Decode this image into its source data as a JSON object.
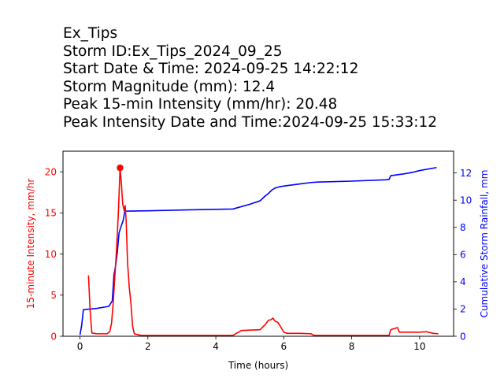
{
  "header": {
    "line1": "Ex_Tips",
    "line2": "Storm ID:Ex_Tips_2024_09_25",
    "line3": "Start Date & Time: 2024-09-25 14:22:12",
    "line4": "Storm Magnitude (mm): 12.4",
    "line5": "Peak 15-min Intensity (mm/hr): 20.48",
    "line6": "Peak Intensity Date and Time:2024-09-25 15:33:12"
  },
  "chart_data": {
    "type": "line",
    "xlabel": "Time (hours)",
    "ylabel_left": "15-minute Intensity, mm/hr",
    "ylabel_right": "Cumulative Storm Rainfall, mm",
    "xlim": [
      -0.5,
      11.0
    ],
    "ylim_left": [
      0,
      22.5
    ],
    "ylim_right": [
      0,
      13.6
    ],
    "x_ticks": [
      0,
      2,
      4,
      6,
      8,
      10
    ],
    "y_ticks_left": [
      0,
      5,
      10,
      15,
      20
    ],
    "y_ticks_right": [
      0,
      2,
      4,
      6,
      8,
      10,
      12
    ],
    "grid": false,
    "colors": {
      "intensity": "#ff0000",
      "cumulative": "#0000ff",
      "axes": "#000000"
    },
    "series": [
      {
        "axis": "left",
        "points": [
          [
            0.25,
            7.4
          ],
          [
            0.3,
            3.0
          ],
          [
            0.35,
            0.4
          ],
          [
            0.5,
            0.3
          ],
          [
            0.8,
            0.3
          ],
          [
            0.88,
            0.6
          ],
          [
            0.93,
            1.6
          ],
          [
            0.98,
            4.2
          ],
          [
            1.03,
            7.5
          ],
          [
            1.08,
            10.8
          ],
          [
            1.13,
            15.0
          ],
          [
            1.18,
            20.48
          ],
          [
            1.22,
            18.5
          ],
          [
            1.26,
            16.0
          ],
          [
            1.3,
            15.3
          ],
          [
            1.33,
            15.9
          ],
          [
            1.36,
            14.0
          ],
          [
            1.4,
            9.0
          ],
          [
            1.45,
            6.0
          ],
          [
            1.5,
            4.0
          ],
          [
            1.55,
            1.2
          ],
          [
            1.6,
            0.3
          ],
          [
            1.8,
            0.1
          ],
          [
            4.5,
            0.1
          ],
          [
            4.75,
            0.7
          ],
          [
            5.0,
            0.75
          ],
          [
            5.3,
            0.8
          ],
          [
            5.45,
            1.4
          ],
          [
            5.55,
            1.95
          ],
          [
            5.62,
            2.0
          ],
          [
            5.68,
            2.2
          ],
          [
            5.74,
            1.85
          ],
          [
            5.82,
            1.7
          ],
          [
            5.9,
            1.2
          ],
          [
            6.0,
            0.5
          ],
          [
            6.1,
            0.35
          ],
          [
            6.5,
            0.35
          ],
          [
            6.8,
            0.3
          ],
          [
            6.9,
            0.1
          ],
          [
            9.1,
            0.1
          ],
          [
            9.15,
            0.8
          ],
          [
            9.35,
            1.05
          ],
          [
            9.4,
            0.5
          ],
          [
            9.6,
            0.5
          ],
          [
            10.0,
            0.5
          ],
          [
            10.2,
            0.55
          ],
          [
            10.4,
            0.35
          ],
          [
            10.55,
            0.3
          ]
        ],
        "peak_marker": [
          1.18,
          20.48
        ]
      },
      {
        "axis": "right",
        "points": [
          [
            0.0,
            0.1
          ],
          [
            0.05,
            0.8
          ],
          [
            0.1,
            1.95
          ],
          [
            0.5,
            2.05
          ],
          [
            0.85,
            2.2
          ],
          [
            0.95,
            2.6
          ],
          [
            1.0,
            4.5
          ],
          [
            1.05,
            5.2
          ],
          [
            1.1,
            6.2
          ],
          [
            1.15,
            7.6
          ],
          [
            1.2,
            8.0
          ],
          [
            1.27,
            8.5
          ],
          [
            1.32,
            9.2
          ],
          [
            1.4,
            9.2
          ],
          [
            2.0,
            9.22
          ],
          [
            3.0,
            9.28
          ],
          [
            4.0,
            9.33
          ],
          [
            4.5,
            9.35
          ],
          [
            5.0,
            9.7
          ],
          [
            5.3,
            9.95
          ],
          [
            5.45,
            10.3
          ],
          [
            5.55,
            10.5
          ],
          [
            5.65,
            10.75
          ],
          [
            5.75,
            10.9
          ],
          [
            5.9,
            11.0
          ],
          [
            6.1,
            11.07
          ],
          [
            6.5,
            11.2
          ],
          [
            6.8,
            11.3
          ],
          [
            7.0,
            11.33
          ],
          [
            8.0,
            11.4
          ],
          [
            9.0,
            11.5
          ],
          [
            9.1,
            11.52
          ],
          [
            9.15,
            11.8
          ],
          [
            9.5,
            11.92
          ],
          [
            9.8,
            12.05
          ],
          [
            10.0,
            12.18
          ],
          [
            10.5,
            12.4
          ]
        ]
      }
    ]
  }
}
